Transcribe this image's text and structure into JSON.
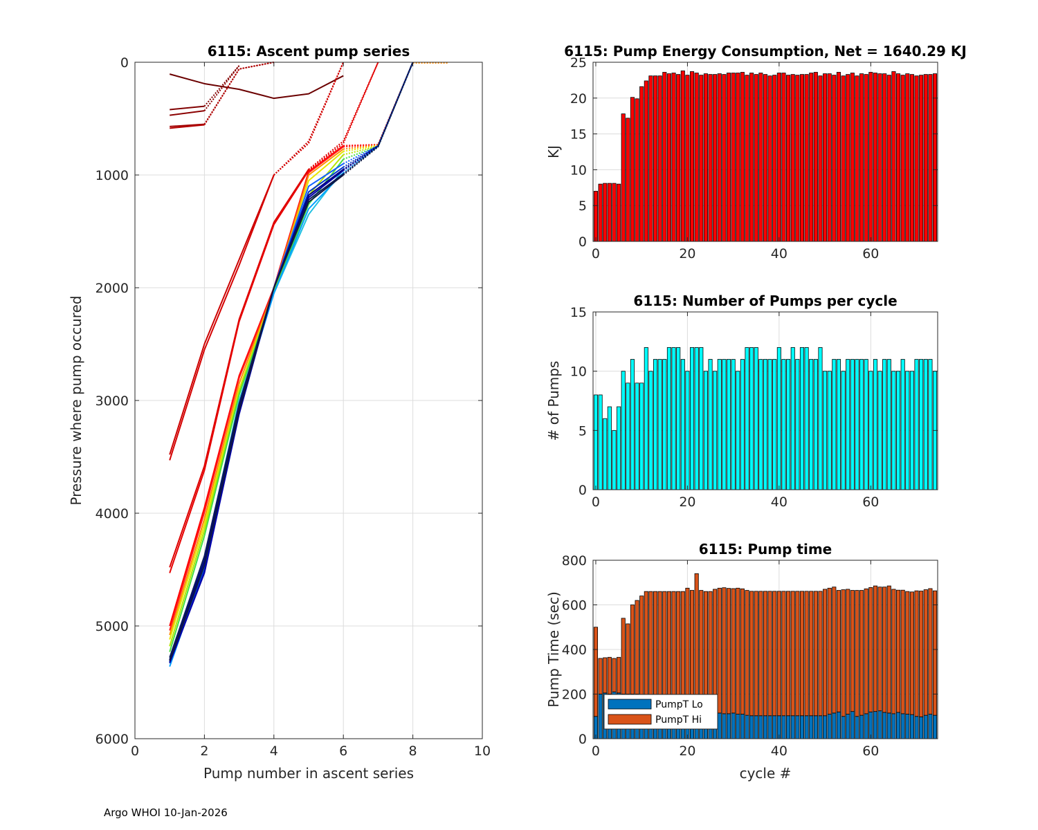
{
  "footer": "Argo WHOI 10-Jan-2026",
  "colors": {
    "axis": "#262626",
    "grid": "#dcdcdc",
    "energy_bar": "#ff0000",
    "pumps_bar": "#00ffff",
    "pumpt_lo": "#0072bd",
    "pumpt_hi": "#d95319"
  },
  "chart_data": [
    {
      "id": "ascent",
      "type": "line",
      "title": "6115: Ascent pump series",
      "xlabel": "Pump number in ascent series",
      "ylabel": "Pressure where pump occured",
      "xlim": [
        0,
        10
      ],
      "ylim": [
        0,
        6000
      ],
      "y_reversed": true,
      "xticks": [
        0,
        2,
        4,
        6,
        8,
        10
      ],
      "yticks": [
        0,
        1000,
        2000,
        3000,
        4000,
        5000,
        6000
      ],
      "grid": true,
      "surface_segment": {
        "x": [
          8,
          9
        ],
        "y": [
          0,
          0
        ],
        "color": "#ff8c00"
      },
      "series": [
        {
          "name": "shallow-1",
          "color": "#6b0000",
          "x": [
            1,
            2,
            3,
            4,
            5,
            6
          ],
          "y": [
            105,
            190,
            240,
            320,
            280,
            120
          ]
        },
        {
          "name": "shallow-2",
          "color": "#800000",
          "x": [
            1,
            2,
            3
          ],
          "y": [
            420,
            390,
            30
          ],
          "dotted_tail_from": 2
        },
        {
          "name": "shallow-3",
          "color": "#8b0000",
          "x": [
            1,
            2,
            3
          ],
          "y": [
            470,
            430,
            30
          ],
          "dotted_tail_from": 2
        },
        {
          "name": "shallow-4",
          "color": "#a00000",
          "x": [
            1,
            2,
            3,
            4
          ],
          "y": [
            570,
            550,
            60,
            0
          ],
          "dotted_tail_from": 2
        },
        {
          "name": "shallow-5",
          "color": "#b30000",
          "x": [
            1,
            2,
            3,
            4
          ],
          "y": [
            585,
            555,
            60,
            0
          ],
          "dotted_tail_from": 2
        },
        {
          "name": "mid-1",
          "color": "#cc0000",
          "x": [
            1,
            2,
            3,
            4,
            5,
            6
          ],
          "y": [
            3480,
            2500,
            1750,
            1000,
            700,
            0
          ],
          "dotted_tail_from": 4
        },
        {
          "name": "mid-2",
          "color": "#d40000",
          "x": [
            1,
            2,
            3,
            4,
            5,
            6
          ],
          "y": [
            3530,
            2550,
            1800,
            1000,
            720,
            0
          ],
          "dotted_tail_from": 4
        },
        {
          "name": "mid-3",
          "color": "#dd0000",
          "x": [
            1,
            2,
            3,
            4,
            5,
            6,
            7
          ],
          "y": [
            4480,
            3580,
            2280,
            1420,
            950,
            700,
            0
          ],
          "dotted_tail_from": 5
        },
        {
          "name": "mid-4",
          "color": "#e60000",
          "x": [
            1,
            2,
            3,
            4,
            5,
            6,
            7
          ],
          "y": [
            4530,
            3620,
            2300,
            1440,
            960,
            720,
            0
          ],
          "dotted_tail_from": 5
        },
        {
          "name": "deep-red-1",
          "color": "#ff0000",
          "x": [
            1,
            2,
            3,
            4,
            5,
            6,
            7,
            8
          ],
          "y": [
            5000,
            3950,
            2780,
            2000,
            970,
            740,
            730,
            0
          ],
          "dotted_tail_from": 6
        },
        {
          "name": "deep-red-2",
          "color": "#ff1a1a",
          "x": [
            1,
            2,
            3,
            4,
            5,
            6,
            7,
            8
          ],
          "y": [
            5040,
            3990,
            2800,
            2010,
            980,
            750,
            730,
            0
          ],
          "dotted_tail_from": 6
        },
        {
          "name": "orange",
          "color": "#ff8c00",
          "x": [
            1,
            2,
            3,
            4,
            5,
            6,
            7,
            8
          ],
          "y": [
            5080,
            4050,
            2850,
            2020,
            1000,
            770,
            735,
            0
          ],
          "dotted_tail_from": 6
        },
        {
          "name": "yellow",
          "color": "#e6e600",
          "x": [
            1,
            2,
            3,
            4,
            5,
            6,
            7,
            8
          ],
          "y": [
            5120,
            4100,
            2900,
            2030,
            1050,
            790,
            740,
            0
          ],
          "dotted_tail_from": 6
        },
        {
          "name": "yellow-green",
          "color": "#b4e600",
          "x": [
            1,
            2,
            3,
            4,
            5,
            6,
            7,
            8
          ],
          "y": [
            5180,
            4150,
            2920,
            2040,
            1180,
            820,
            745,
            0
          ],
          "dotted_tail_from": 6
        },
        {
          "name": "green",
          "color": "#44dd44",
          "x": [
            1,
            2,
            3,
            4,
            5,
            6,
            7,
            8
          ],
          "y": [
            5230,
            4200,
            2950,
            2040,
            1260,
            860,
            745,
            0
          ],
          "dotted_tail_from": 6
        },
        {
          "name": "cyan-1",
          "color": "#20c0e0",
          "x": [
            1,
            2,
            3,
            4,
            5,
            6,
            7,
            8
          ],
          "y": [
            5330,
            4400,
            3000,
            2050,
            1350,
            950,
            745,
            0
          ],
          "dotted_tail_from": 6
        },
        {
          "name": "sky",
          "color": "#00a0ff",
          "x": [
            1,
            2,
            3,
            4,
            5,
            6,
            7,
            8
          ],
          "y": [
            5360,
            4480,
            3050,
            2050,
            1300,
            980,
            745,
            0
          ],
          "dotted_tail_from": 6
        },
        {
          "name": "blue-1",
          "color": "#1060ff",
          "x": [
            1,
            2,
            3,
            4,
            5,
            6,
            7,
            8
          ],
          "y": [
            5300,
            4450,
            3080,
            2000,
            1100,
            900,
            740,
            0
          ],
          "dotted_tail_from": 6
        },
        {
          "name": "blue-2",
          "color": "#0033cc",
          "x": [
            1,
            2,
            3,
            4,
            5,
            6,
            7,
            8
          ],
          "y": [
            5320,
            4500,
            3100,
            2000,
            1150,
            930,
            740,
            0
          ],
          "dotted_tail_from": 6
        },
        {
          "name": "blue-3",
          "color": "#0000aa",
          "x": [
            1,
            2,
            3,
            4,
            5,
            6,
            7,
            8
          ],
          "y": [
            5330,
            4530,
            3120,
            2000,
            1200,
            960,
            745,
            0
          ],
          "dotted_tail_from": 6
        },
        {
          "name": "navy-1",
          "color": "#000080",
          "x": [
            1,
            2,
            3,
            4,
            5,
            6,
            7,
            8
          ],
          "y": [
            5300,
            4420,
            3060,
            2000,
            1180,
            950,
            740,
            0
          ],
          "dotted_tail_from": 6
        },
        {
          "name": "navy-2",
          "color": "#0a1a5c",
          "x": [
            1,
            2,
            3,
            4,
            5,
            6,
            7,
            8
          ],
          "y": [
            5280,
            4380,
            3030,
            2000,
            1220,
            990,
            745,
            0
          ],
          "dotted_tail_from": 6
        },
        {
          "name": "navy-3",
          "color": "#101840",
          "x": [
            1,
            2,
            3,
            4,
            5,
            6,
            7,
            8
          ],
          "y": [
            5310,
            4460,
            3090,
            2000,
            1240,
            1000,
            750,
            0
          ],
          "dotted_tail_from": 6
        }
      ]
    },
    {
      "id": "energy",
      "type": "bar",
      "title": "6115: Pump Energy Consumption,  Net = 1640.29 KJ",
      "xlabel": "",
      "ylabel": "KJ",
      "xlim": [
        -0.6,
        74.6
      ],
      "ylim": [
        0,
        25
      ],
      "xticks": [
        0,
        20,
        40,
        60
      ],
      "yticks": [
        0,
        5,
        10,
        15,
        20,
        25
      ],
      "grid": true,
      "x_start": 0,
      "values": [
        7.0,
        8.0,
        8.1,
        8.1,
        8.1,
        8.0,
        17.8,
        17.2,
        20.1,
        19.9,
        21.6,
        22.4,
        23.1,
        23.1,
        23.1,
        23.6,
        23.4,
        23.5,
        23.3,
        23.8,
        23.2,
        23.7,
        23.5,
        23.2,
        23.4,
        23.3,
        23.3,
        23.4,
        23.3,
        23.5,
        23.5,
        23.5,
        23.6,
        23.2,
        23.5,
        23.3,
        23.5,
        23.3,
        23.1,
        23.2,
        23.5,
        23.5,
        23.2,
        23.3,
        23.2,
        23.3,
        23.3,
        23.5,
        23.6,
        23.1,
        23.4,
        23.4,
        23.2,
        23.6,
        23.1,
        23.3,
        23.5,
        23.1,
        23.4,
        23.3,
        23.6,
        23.5,
        23.4,
        23.4,
        23.2,
        23.7,
        23.4,
        23.2,
        23.4,
        23.3,
        23.1,
        23.2,
        23.3,
        23.3,
        23.4
      ]
    },
    {
      "id": "pumps",
      "type": "bar",
      "title": "6115: Number of Pumps per cycle",
      "xlabel": "",
      "ylabel": "# of Pumps",
      "xlim": [
        -0.6,
        74.6
      ],
      "ylim": [
        0,
        15
      ],
      "xticks": [
        0,
        20,
        40,
        60
      ],
      "yticks": [
        0,
        5,
        10,
        15
      ],
      "grid": true,
      "x_start": 0,
      "values": [
        8,
        8,
        6,
        7,
        5,
        7,
        10,
        9,
        11,
        9,
        9,
        12,
        10,
        11,
        11,
        11,
        12,
        12,
        12,
        11,
        10,
        12,
        12,
        12,
        10,
        11,
        10,
        11,
        11,
        11,
        11,
        10,
        11,
        12,
        12,
        12,
        11,
        11,
        11,
        11,
        12,
        11,
        11,
        12,
        11,
        12,
        12,
        11,
        11,
        12,
        10,
        10,
        11,
        11,
        10,
        11,
        11,
        11,
        11,
        11,
        10,
        11,
        10,
        11,
        11,
        10,
        10,
        11,
        10,
        10,
        11,
        11,
        11,
        11,
        10
      ]
    },
    {
      "id": "pumptime",
      "type": "bar",
      "stacked": true,
      "title": "6115: Pump time",
      "xlabel": "cycle #",
      "ylabel": "Pump Time (sec)",
      "xlim": [
        -0.6,
        74.6
      ],
      "ylim": [
        0,
        800
      ],
      "xticks": [
        0,
        20,
        40,
        60
      ],
      "yticks": [
        0,
        200,
        400,
        600,
        800
      ],
      "grid": true,
      "x_start": 0,
      "legend": {
        "position": "bottom-left",
        "entries": [
          "PumpT Lo",
          "PumpT Hi"
        ]
      },
      "series": [
        {
          "name": "PumpT Lo",
          "values": [
            100,
            200,
            205,
            200,
            210,
            205,
            200,
            200,
            200,
            200,
            100,
            100,
            100,
            100,
            100,
            100,
            100,
            100,
            100,
            100,
            100,
            100,
            100,
            100,
            100,
            100,
            100,
            115,
            112,
            112,
            115,
            110,
            110,
            105,
            103,
            103,
            103,
            103,
            103,
            103,
            103,
            103,
            103,
            103,
            103,
            103,
            103,
            103,
            103,
            103,
            103,
            110,
            115,
            120,
            100,
            110,
            122,
            100,
            105,
            112,
            120,
            122,
            125,
            118,
            115,
            112,
            118,
            112,
            110,
            108,
            100,
            98,
            105,
            110,
            105
          ]
        },
        {
          "name": "PumpT Hi",
          "values": [
            400,
            160,
            158,
            165,
            150,
            160,
            340,
            315,
            400,
            420,
            540,
            560,
            560,
            560,
            560,
            560,
            560,
            560,
            560,
            560,
            575,
            565,
            640,
            565,
            560,
            560,
            570,
            560,
            565,
            562,
            558,
            565,
            562,
            560,
            558,
            558,
            558,
            558,
            558,
            558,
            558,
            558,
            558,
            558,
            558,
            558,
            558,
            558,
            558,
            558,
            567,
            565,
            565,
            545,
            568,
            560,
            543,
            565,
            560,
            560,
            558,
            563,
            555,
            562,
            570,
            558,
            548,
            554,
            550,
            550,
            563,
            564,
            563,
            563,
            558
          ]
        }
      ]
    }
  ]
}
